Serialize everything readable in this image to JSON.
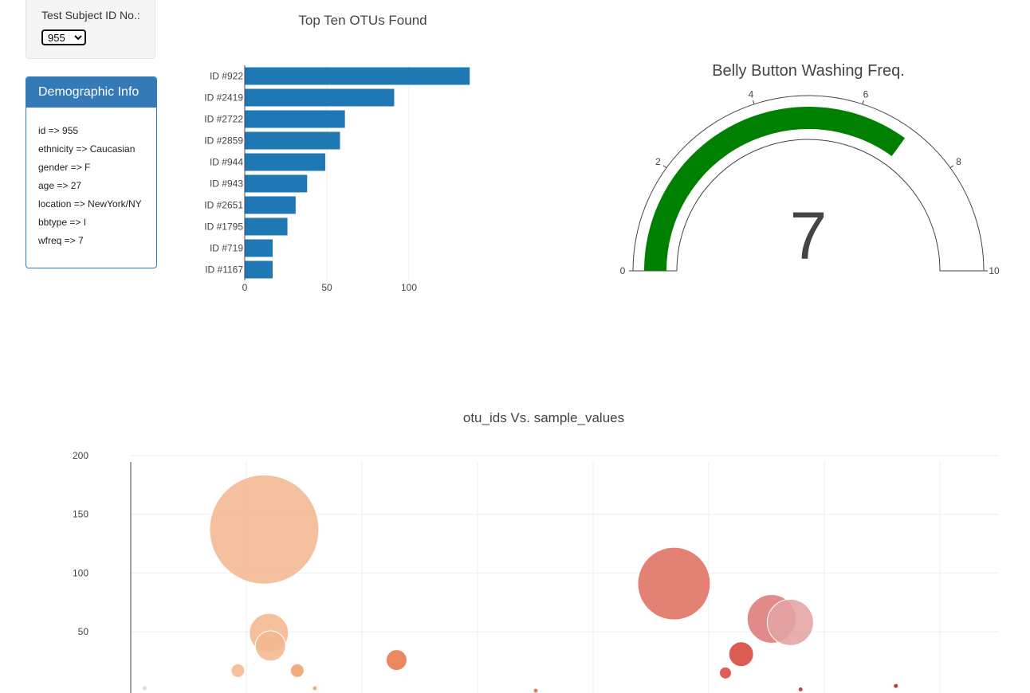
{
  "selector": {
    "label": "Test Subject ID No.:",
    "selected": "955"
  },
  "demographic": {
    "title": "Demographic Info",
    "lines": [
      "id => 955",
      "ethnicity => Caucasian",
      "gender => F",
      "age => 27",
      "location => NewYork/NY",
      "bbtype => I",
      "wfreq => 7"
    ]
  },
  "chart_data": [
    {
      "type": "bar",
      "orientation": "horizontal",
      "title": "Top Ten OTUs Found",
      "categories": [
        "ID #922",
        "ID #2419",
        "ID #2722",
        "ID #2859",
        "ID #944",
        "ID #943",
        "ID #2651",
        "ID #1795",
        "ID #719",
        "ID #1167"
      ],
      "values": [
        137,
        91,
        61,
        58,
        49,
        38,
        31,
        26,
        17,
        17
      ],
      "xlim": [
        0,
        140
      ],
      "xticks": [
        0,
        50,
        100
      ],
      "color": "#1f77b4",
      "grid": true
    },
    {
      "type": "gauge",
      "title": "Belly Button Washing Freq.",
      "value": 7,
      "range": [
        0,
        10
      ],
      "ticks": [
        0,
        2,
        4,
        6,
        8,
        10
      ],
      "bar_color": "#008000"
    },
    {
      "type": "scatter",
      "subtype": "bubble",
      "title": "otu_ids Vs. sample_values",
      "ylim": [
        0,
        210
      ],
      "yticks": [
        50,
        100,
        150,
        200
      ],
      "points": [
        {
          "x": 30,
          "y": 2,
          "size": 2,
          "color": "#d8d8d8"
        },
        {
          "x": 570,
          "y": 137,
          "size": 137,
          "color": "#f4b78f"
        },
        {
          "x": 591,
          "y": 49,
          "size": 49,
          "color": "#f4b78f"
        },
        {
          "x": 598,
          "y": 38,
          "size": 38,
          "color": "#f4b78f"
        },
        {
          "x": 451,
          "y": 17,
          "size": 17,
          "color": "#f4b78f"
        },
        {
          "x": 719,
          "y": 17,
          "size": 17,
          "color": "#f0a16e"
        },
        {
          "x": 798,
          "y": 2,
          "size": 2,
          "color": "#f0a16e"
        },
        {
          "x": 1167,
          "y": 26,
          "size": 26,
          "color": "#e8774a"
        },
        {
          "x": 1795,
          "y": 0,
          "size": 0,
          "color": "#e0664a"
        },
        {
          "x": 2419,
          "y": 91,
          "size": 91,
          "color": "#e07062"
        },
        {
          "x": 2651,
          "y": 15,
          "size": 15,
          "color": "#d6493a"
        },
        {
          "x": 2722,
          "y": 31,
          "size": 31,
          "color": "#d6463a"
        },
        {
          "x": 2859,
          "y": 61,
          "size": 61,
          "color": "#dc7a7a"
        },
        {
          "x": 2944,
          "y": 58,
          "size": 58,
          "color": "#e3a3a3"
        },
        {
          "x": 2990,
          "y": 1,
          "size": 1,
          "color": "#c0292e"
        },
        {
          "x": 3420,
          "y": 4,
          "size": 4,
          "color": "#b71c24"
        }
      ]
    }
  ]
}
